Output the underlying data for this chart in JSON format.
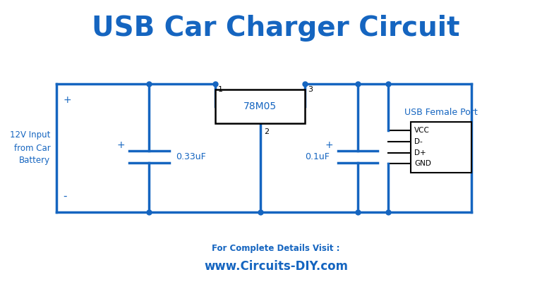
{
  "title": "USB Car Charger Circuit",
  "title_color": "#1565C0",
  "title_fontsize": 28,
  "line_color": "#1565C0",
  "line_width": 2.5,
  "bg_color": "#FFFFFF",
  "footer_text1": "For Complete Details Visit :",
  "footer_text2": "www.Circuits-DIY.com",
  "footer_color": "#1565C0",
  "ic_label": "78M05",
  "cap1_label": "0.33uF",
  "cap2_label": "0.1uF",
  "input_label": "12V Input\nfrom Car\nBattery",
  "usb_label": "USB Female Port",
  "usb_pins": [
    "VCC",
    "D-",
    "D+",
    "GND"
  ],
  "pin1_label": "1",
  "pin2_label": "2",
  "pin3_label": "3",
  "plus_label": "+",
  "minus_label": "-"
}
